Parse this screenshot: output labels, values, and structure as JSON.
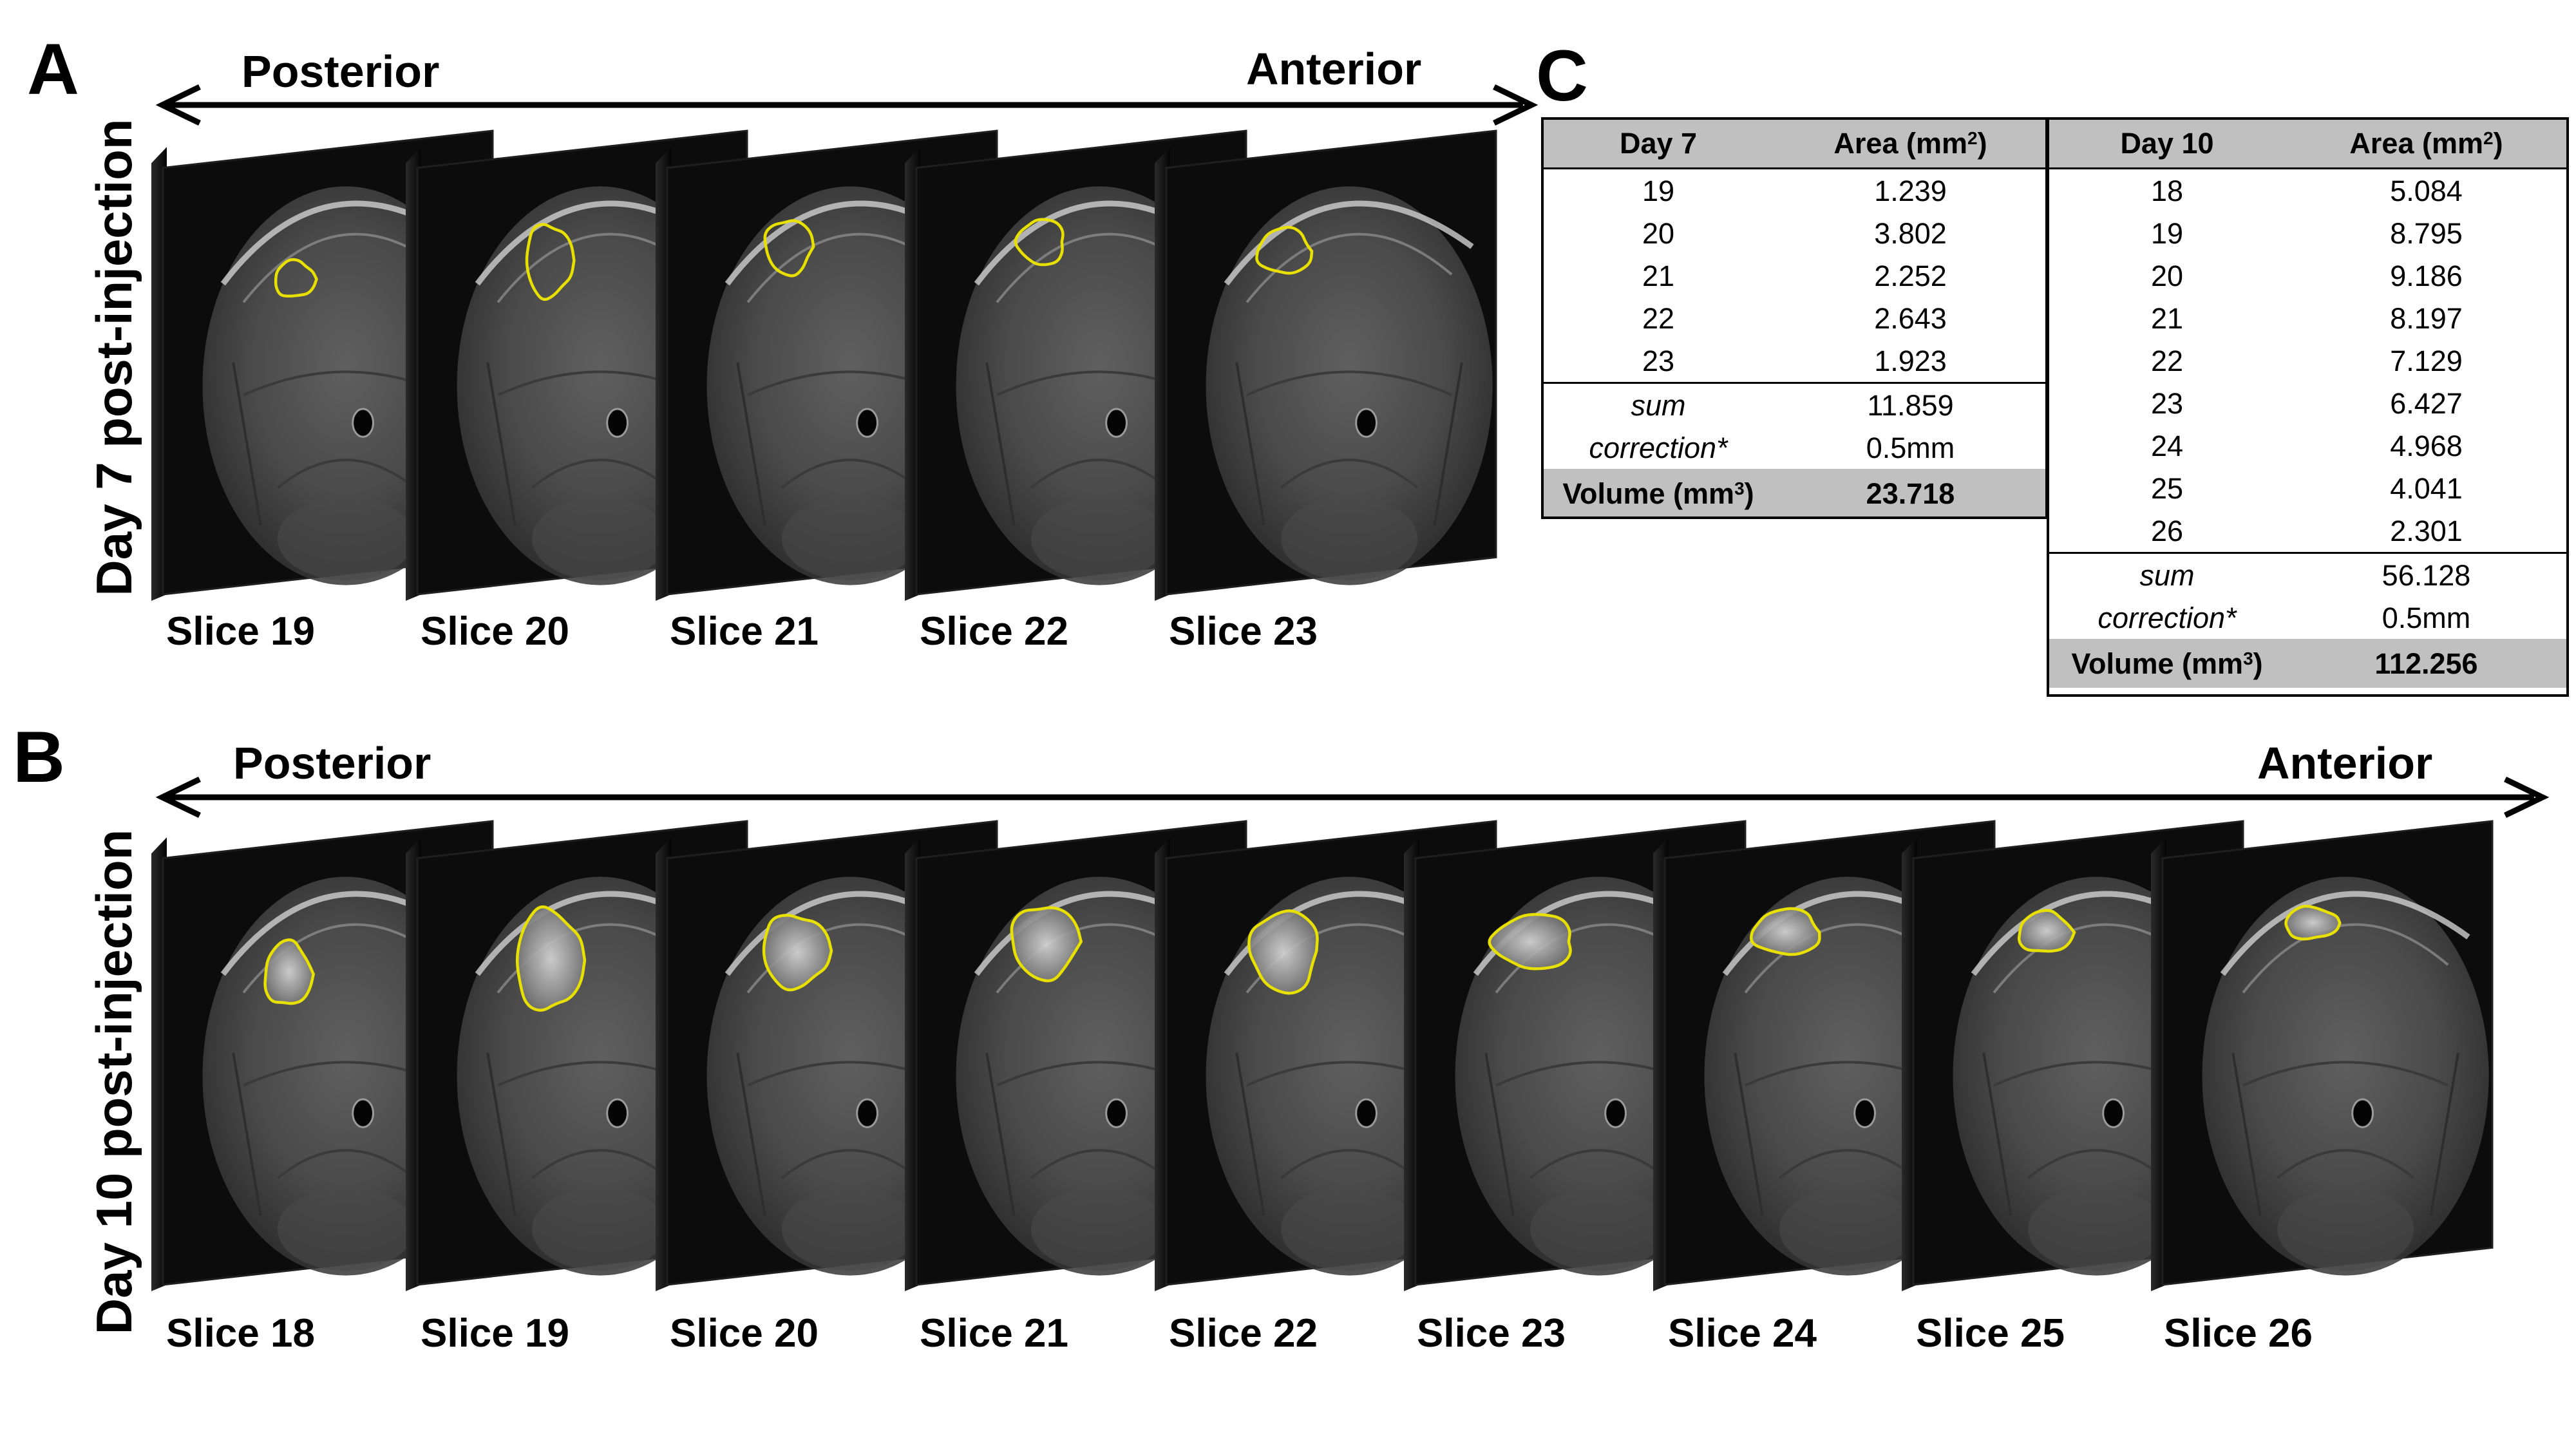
{
  "panels": {
    "a": "A",
    "b": "B",
    "c": "C"
  },
  "panel_a": {
    "side_label": "Day 7 post-injection",
    "left_direction": "Posterior",
    "right_direction": "Anterior",
    "slices": [
      "Slice 19",
      "Slice 20",
      "Slice 21",
      "Slice 22",
      "Slice 23"
    ]
  },
  "panel_b": {
    "side_label": "Day 10 post-injection",
    "left_direction": "Posterior",
    "right_direction": "Anterior",
    "slices": [
      "Slice 18",
      "Slice 19",
      "Slice 20",
      "Slice 21",
      "Slice 22",
      "Slice 23",
      "Slice 24",
      "Slice 25",
      "Slice 26"
    ]
  },
  "table_day7": {
    "header_slice": "Day 7",
    "header_area": "Area (mm",
    "header_area_sup": "2",
    "header_area_close": ")",
    "rows": [
      {
        "slice": "19",
        "area": "1.239"
      },
      {
        "slice": "20",
        "area": "3.802"
      },
      {
        "slice": "21",
        "area": "2.252"
      },
      {
        "slice": "22",
        "area": "2.643"
      },
      {
        "slice": "23",
        "area": "1.923"
      }
    ],
    "sum_label": "sum",
    "sum_value": "11.859",
    "correction_label": "correction*",
    "correction_value": "0.5mm",
    "volume_label": "Volume (mm",
    "volume_sup": "3",
    "volume_close": ")",
    "volume_value": "23.718"
  },
  "table_day10": {
    "header_slice": "Day 10",
    "header_area": "Area (mm",
    "header_area_sup": "2",
    "header_area_close": ")",
    "rows": [
      {
        "slice": "18",
        "area": "5.084"
      },
      {
        "slice": "19",
        "area": "8.795"
      },
      {
        "slice": "20",
        "area": "9.186"
      },
      {
        "slice": "21",
        "area": "8.197"
      },
      {
        "slice": "22",
        "area": "7.129"
      },
      {
        "slice": "23",
        "area": "6.427"
      },
      {
        "slice": "24",
        "area": "4.968"
      },
      {
        "slice": "25",
        "area": "4.041"
      },
      {
        "slice": "26",
        "area": "2.301"
      }
    ],
    "sum_label": "sum",
    "sum_value": "56.128",
    "correction_label": "correction*",
    "correction_value": "0.5mm",
    "volume_label": "Volume (mm",
    "volume_sup": "3",
    "volume_close": ")",
    "volume_value": "112.256"
  },
  "colors": {
    "roi_outline": "#e8e000",
    "slice_background": "#111111",
    "header_fill": "#c0c0c0"
  }
}
